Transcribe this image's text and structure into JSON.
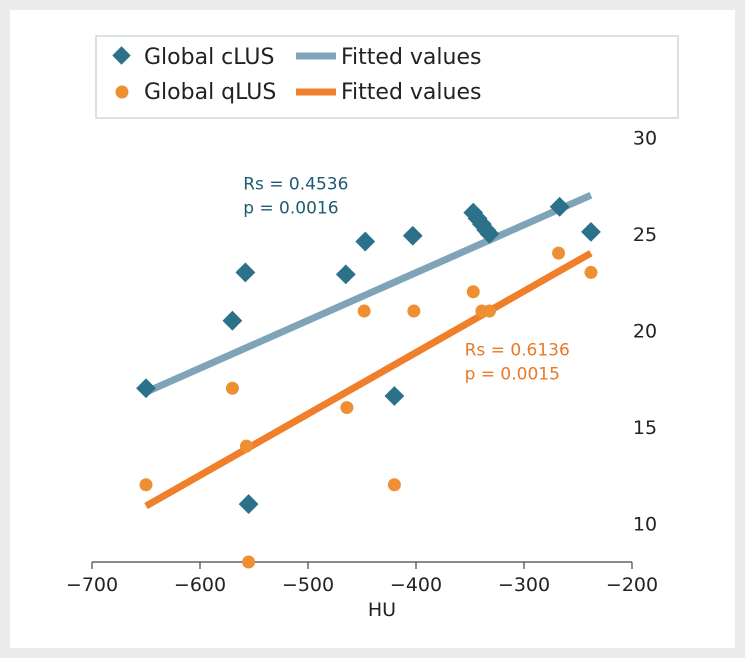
{
  "chart_data": {
    "type": "scatter",
    "title": "",
    "xlabel": "HU",
    "ylabel": "",
    "xlim": [
      -700,
      -200
    ],
    "ylim": [
      8,
      31
    ],
    "xticks": [
      -700,
      -600,
      -500,
      -400,
      -300,
      -200
    ],
    "yticks": [
      10,
      15,
      20,
      25,
      30
    ],
    "grid": false,
    "legend": "top",
    "series": [
      {
        "name": "Global cLUS",
        "marker": "diamond",
        "color": "#2a7189",
        "points": [
          {
            "x": -650,
            "y": 17
          },
          {
            "x": -570,
            "y": 20.5
          },
          {
            "x": -558,
            "y": 23
          },
          {
            "x": -555,
            "y": 11
          },
          {
            "x": -465,
            "y": 22.9
          },
          {
            "x": -447,
            "y": 24.6
          },
          {
            "x": -420,
            "y": 16.6
          },
          {
            "x": -403,
            "y": 24.9
          },
          {
            "x": -347,
            "y": 26.1
          },
          {
            "x": -343,
            "y": 25.8
          },
          {
            "x": -339,
            "y": 25.5
          },
          {
            "x": -335,
            "y": 25.2
          },
          {
            "x": -332,
            "y": 25
          },
          {
            "x": -267,
            "y": 26.4
          },
          {
            "x": -238,
            "y": 25.1
          }
        ]
      },
      {
        "name": "Global qLUS",
        "marker": "circle",
        "color": "#ee9032",
        "points": [
          {
            "x": -650,
            "y": 12
          },
          {
            "x": -570,
            "y": 17
          },
          {
            "x": -557,
            "y": 14
          },
          {
            "x": -555,
            "y": 8
          },
          {
            "x": -464,
            "y": 16
          },
          {
            "x": -448,
            "y": 21
          },
          {
            "x": -420,
            "y": 12
          },
          {
            "x": -402,
            "y": 21
          },
          {
            "x": -347,
            "y": 22
          },
          {
            "x": -339,
            "y": 21
          },
          {
            "x": -332,
            "y": 21
          },
          {
            "x": -268,
            "y": 24
          },
          {
            "x": -238,
            "y": 23
          }
        ]
      }
    ],
    "fits": [
      {
        "name": "Fitted values",
        "color": "#7fa3b7",
        "x": [
          -650,
          -238
        ],
        "y": [
          16.8,
          27
        ]
      },
      {
        "name": "Fitted values",
        "color": "#ef7f2a",
        "x": [
          -650,
          -238
        ],
        "y": [
          10.9,
          24
        ]
      }
    ],
    "annotations": [
      {
        "lines": [
          "Rs = 0.4536",
          "p = 0.0016"
        ],
        "color": "#1f5a73",
        "at": {
          "x": -560,
          "y": 27.3
        }
      },
      {
        "lines": [
          "Rs = 0.6136",
          "p = 0.0015"
        ],
        "color": "#e8792a",
        "at": {
          "x": -355,
          "y": 18.7
        }
      }
    ]
  }
}
